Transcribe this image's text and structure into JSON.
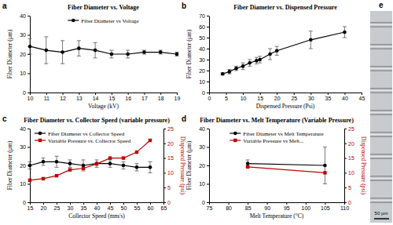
{
  "chart_data": [
    {
      "type": "line",
      "label": "a",
      "title": "Fiber Diameter vs. Voltage",
      "x_label": "Voltage (kV)",
      "y_label": "Fiber Diameter (µm)",
      "x": [
        10,
        11,
        12,
        13,
        14,
        15,
        16,
        17,
        18,
        19
      ],
      "series": [
        {
          "name": "Fiber Diameter vs Voltage",
          "color": "#000000",
          "marker": "circle",
          "line_style": "solid",
          "values": [
            24,
            22,
            21,
            23,
            22,
            20,
            20,
            21,
            21,
            20
          ],
          "errors": [
            4,
            7,
            6,
            4,
            4,
            2,
            2,
            1,
            1,
            1
          ]
        }
      ],
      "xlim": [
        10,
        19
      ],
      "xticks": [
        10,
        11,
        12,
        13,
        14,
        15,
        16,
        17,
        18,
        19
      ],
      "ylim": [
        0,
        40
      ],
      "yticks": [
        0,
        10,
        20,
        30,
        40
      ],
      "legend": "top",
      "grid": false
    },
    {
      "type": "line",
      "label": "b",
      "title": "Fiber Diameter vs. Dispensed Pressure",
      "x_label": "Dispensed Pressure (Psi)",
      "y_label": "Fiber Diameter (µm)",
      "x": [
        4,
        6,
        8,
        10,
        12,
        14,
        15,
        18,
        20,
        30,
        40
      ],
      "series": [
        {
          "color": "#000000",
          "marker": "circle",
          "line_style": "solid",
          "values": [
            17,
            19,
            22,
            24,
            27,
            29,
            30,
            35,
            38,
            48,
            55
          ],
          "errors": [
            1,
            2,
            2,
            3,
            3,
            3,
            3,
            5,
            4,
            8,
            5
          ]
        }
      ],
      "xlim": [
        0,
        45
      ],
      "xticks": [
        0,
        5,
        10,
        15,
        20,
        25,
        30,
        35,
        40,
        45
      ],
      "ylim": [
        0,
        70
      ],
      "yticks": [
        0,
        10,
        20,
        30,
        40,
        50,
        60,
        70
      ],
      "grid": false
    },
    {
      "type": "line",
      "label": "c",
      "title": "Fiber Diameter vs. Collector Speed (variable pressure)",
      "x_label": "Collector Speed (mm/s)",
      "y_label": "Fiber Diameter (µm)",
      "y2_label": "Dispensed Pressure (psi)",
      "x": [
        15,
        20,
        25,
        30,
        35,
        40,
        45,
        50,
        55,
        60
      ],
      "series": [
        {
          "name": "Fiber Diameter vs Collector Speed",
          "color": "#000000",
          "marker": "circle",
          "line_style": "solid",
          "values": [
            20,
            22,
            22,
            21,
            20,
            21,
            21,
            20,
            19,
            19
          ],
          "errors": [
            2,
            2,
            3,
            2,
            3,
            2,
            2,
            2,
            2,
            3
          ]
        },
        {
          "name": "Variable Pressure vs. Collector Speed",
          "color": "#c00000",
          "marker": "square",
          "line_style": "solid",
          "axis": "y2",
          "values": [
            7.5,
            8,
            9,
            11,
            11.5,
            13,
            15,
            15,
            17,
            21
          ]
        }
      ],
      "xlim": [
        15,
        65
      ],
      "xticks": [
        15,
        20,
        25,
        30,
        35,
        40,
        45,
        50,
        55,
        60,
        65
      ],
      "ylim": [
        0,
        40
      ],
      "yticks": [
        0,
        10,
        20,
        30,
        40
      ],
      "y2lim": [
        0,
        25
      ],
      "y2ticks": [
        0,
        5,
        10,
        15,
        20,
        25
      ],
      "legend": "top-left",
      "grid": false
    },
    {
      "type": "line",
      "label": "d",
      "title": "Fiber Diameter vs. Melt Temperature (Variable Pressure)",
      "x_label": "Melt Temperature (°C)",
      "y_label": "Fiber Diameter (µm)",
      "y2_label": "Dispensed Pressure (psi)",
      "x": [
        85,
        105
      ],
      "series": [
        {
          "name": "Fiber Diameter vs Melt Temperature",
          "color": "#000000",
          "marker": "circle",
          "line_style": "solid",
          "values": [
            21,
            20
          ],
          "errors": [
            2,
            10
          ]
        },
        {
          "name": "Variable Pressure vs Melt...",
          "color": "#c00000",
          "marker": "square",
          "line_style": "solid",
          "axis": "y2",
          "values": [
            12,
            10
          ]
        }
      ],
      "xlim": [
        75,
        110
      ],
      "xticks": [
        75,
        80,
        85,
        90,
        95,
        100,
        105,
        110
      ],
      "ylim": [
        0,
        40
      ],
      "yticks": [
        0,
        10,
        20,
        30,
        40
      ],
      "y2lim": [
        0,
        25
      ],
      "y2ticks": [
        0,
        5,
        10,
        15,
        20,
        25
      ],
      "legend": "top",
      "grid": false
    }
  ],
  "image_panel": {
    "label": "e",
    "scale_bar": "50 µm"
  }
}
